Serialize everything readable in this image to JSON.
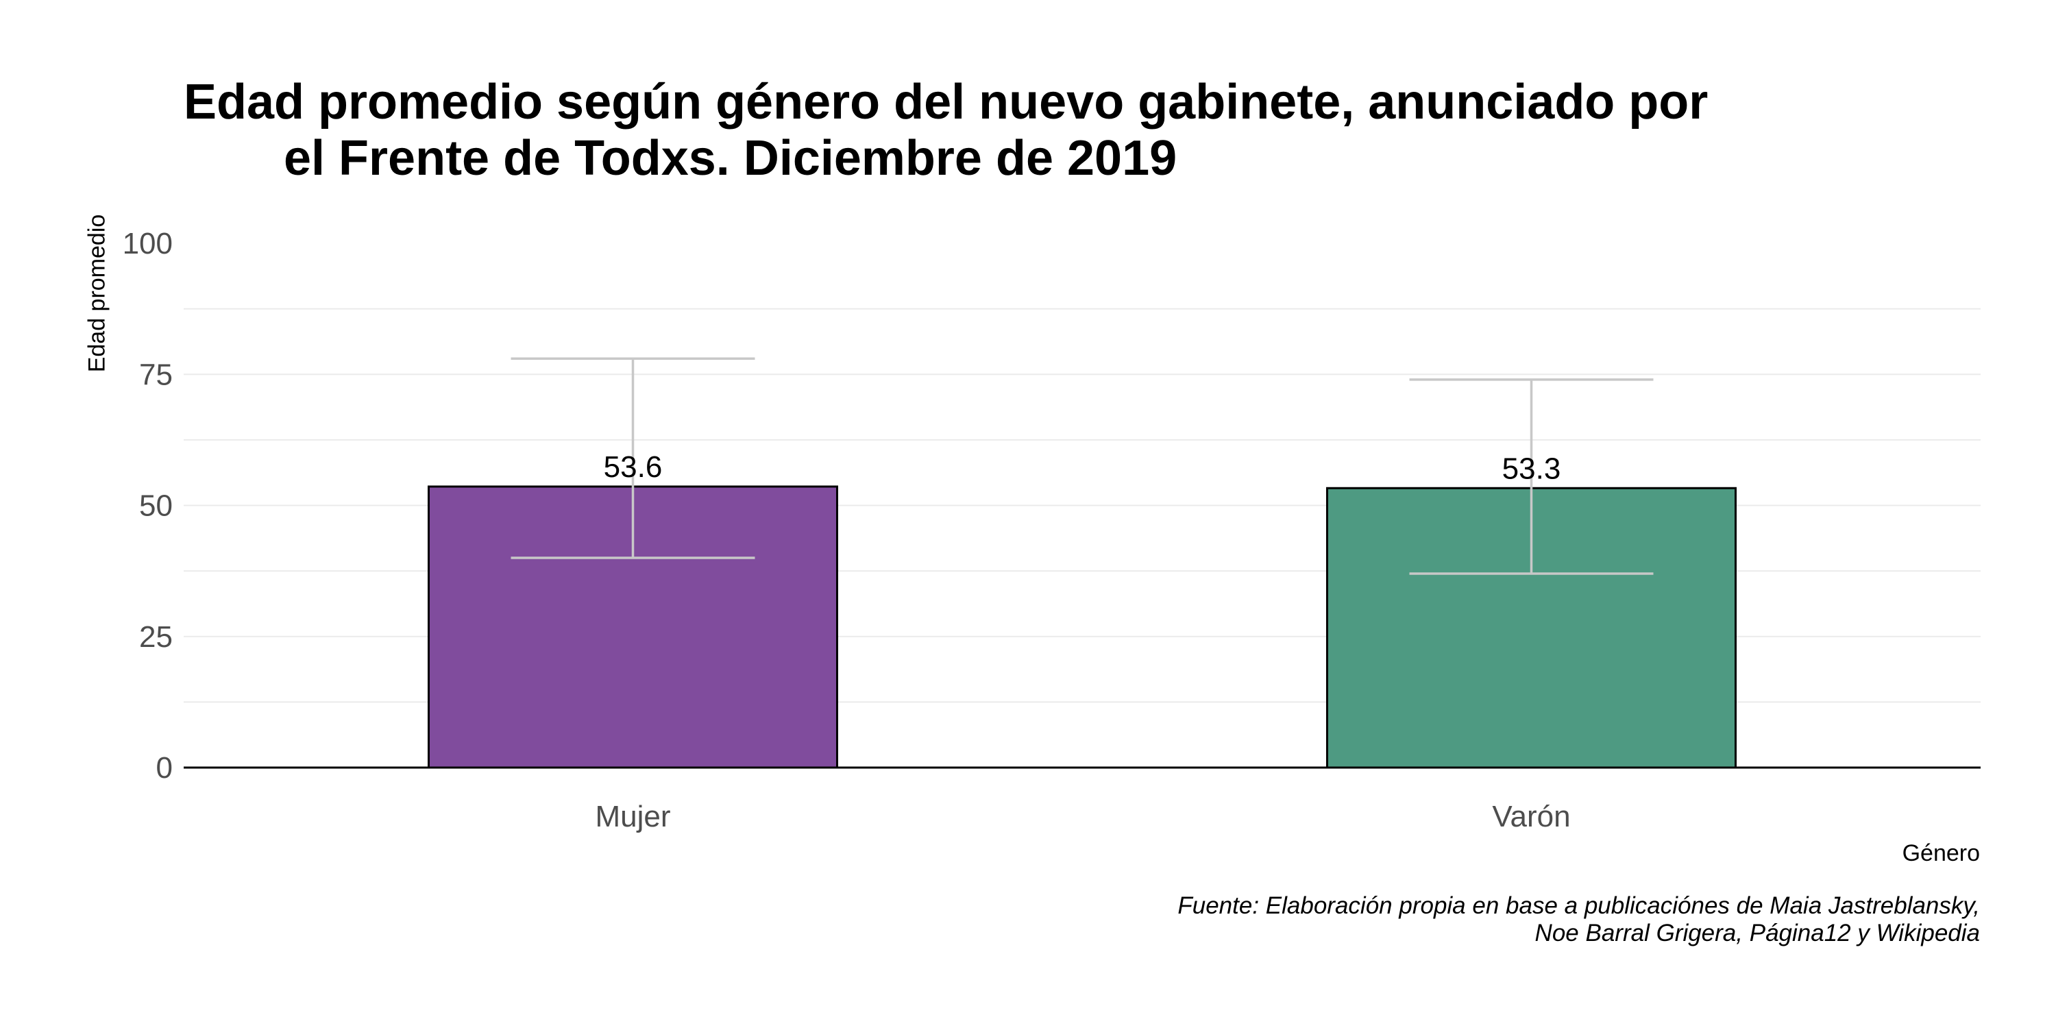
{
  "chart_data": {
    "type": "bar",
    "title_lines": [
      "Edad promedio según género del nuevo gabinete, anunciado por",
      "el Frente de Todxs. Diciembre de 2019"
    ],
    "xlabel": "Género",
    "ylabel": "Edad promedio",
    "ylim": [
      0,
      100
    ],
    "y_ticks": [
      0,
      25,
      50,
      75,
      100
    ],
    "categories": [
      "Mujer",
      "Varón"
    ],
    "values": [
      53.6,
      53.3
    ],
    "value_labels": [
      "53.6",
      "53.3"
    ],
    "error_bars": [
      {
        "low": 40.0,
        "high": 78.0
      },
      {
        "low": 37.0,
        "high": 74.0
      }
    ],
    "colors": [
      "#804c9d",
      "#4e9a82"
    ],
    "bar_edge_color": "#000000",
    "error_bar_color": "#c8c8c8",
    "grid": true,
    "legend": "none",
    "caption_lines": [
      "Fuente: Elaboración propia en base a publicaciónes de Maia Jastreblansky,",
      "Noe Barral Grigera, Página12 y Wikipedia"
    ]
  }
}
